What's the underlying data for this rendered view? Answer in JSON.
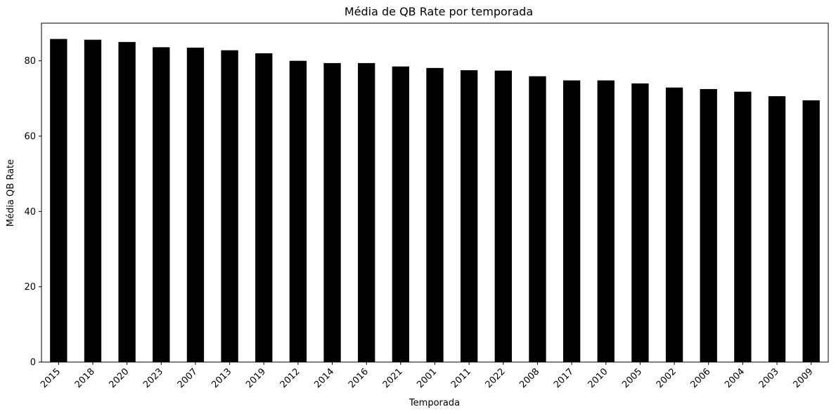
{
  "chart_data": {
    "type": "bar",
    "title": "Média de QB Rate por temporada",
    "xlabel": "Temporada",
    "ylabel": "Média QB Rate",
    "categories": [
      "2015",
      "2018",
      "2020",
      "2023",
      "2007",
      "2013",
      "2019",
      "2012",
      "2014",
      "2016",
      "2021",
      "2001",
      "2011",
      "2022",
      "2008",
      "2017",
      "2010",
      "2005",
      "2002",
      "2006",
      "2004",
      "2003",
      "2009"
    ],
    "values": [
      85.8,
      85.6,
      85.0,
      83.6,
      83.5,
      82.8,
      82.0,
      80.0,
      79.4,
      79.4,
      78.5,
      78.1,
      77.5,
      77.4,
      75.9,
      74.8,
      74.8,
      74.0,
      72.9,
      72.5,
      71.8,
      70.6,
      69.5
    ],
    "ylim": [
      0,
      90
    ],
    "yticks": [
      0,
      20,
      40,
      60,
      80
    ],
    "bar_color": "#000000",
    "grid": false,
    "legend": false
  }
}
